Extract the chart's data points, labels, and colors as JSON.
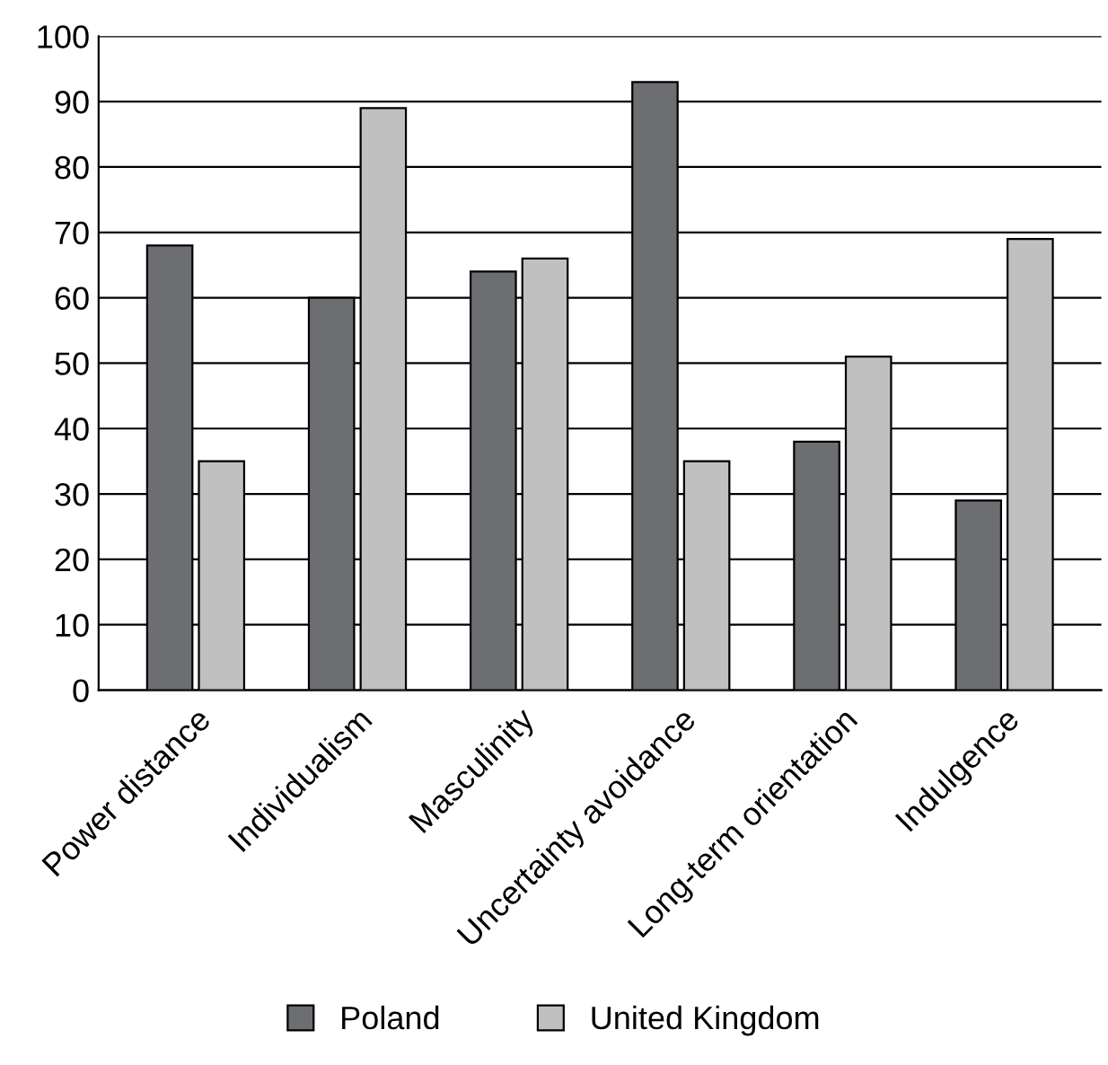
{
  "chart_data": {
    "type": "bar",
    "categories": [
      "Power distance",
      "Individualism",
      "Masculinity",
      "Uncertainty avoidance",
      "Long-term orientation",
      "Indulgence"
    ],
    "series": [
      {
        "name": "Poland",
        "color": "#6d6e71",
        "values": [
          68,
          60,
          64,
          93,
          38,
          29
        ]
      },
      {
        "name": "United Kingdom",
        "color": "#c0c0c0",
        "values": [
          35,
          89,
          66,
          35,
          51,
          69
        ]
      }
    ],
    "ylim": [
      0,
      100
    ],
    "yticks": [
      0,
      10,
      20,
      30,
      40,
      50,
      60,
      70,
      80,
      90,
      100
    ],
    "grid": "y",
    "legend": "bottom"
  }
}
